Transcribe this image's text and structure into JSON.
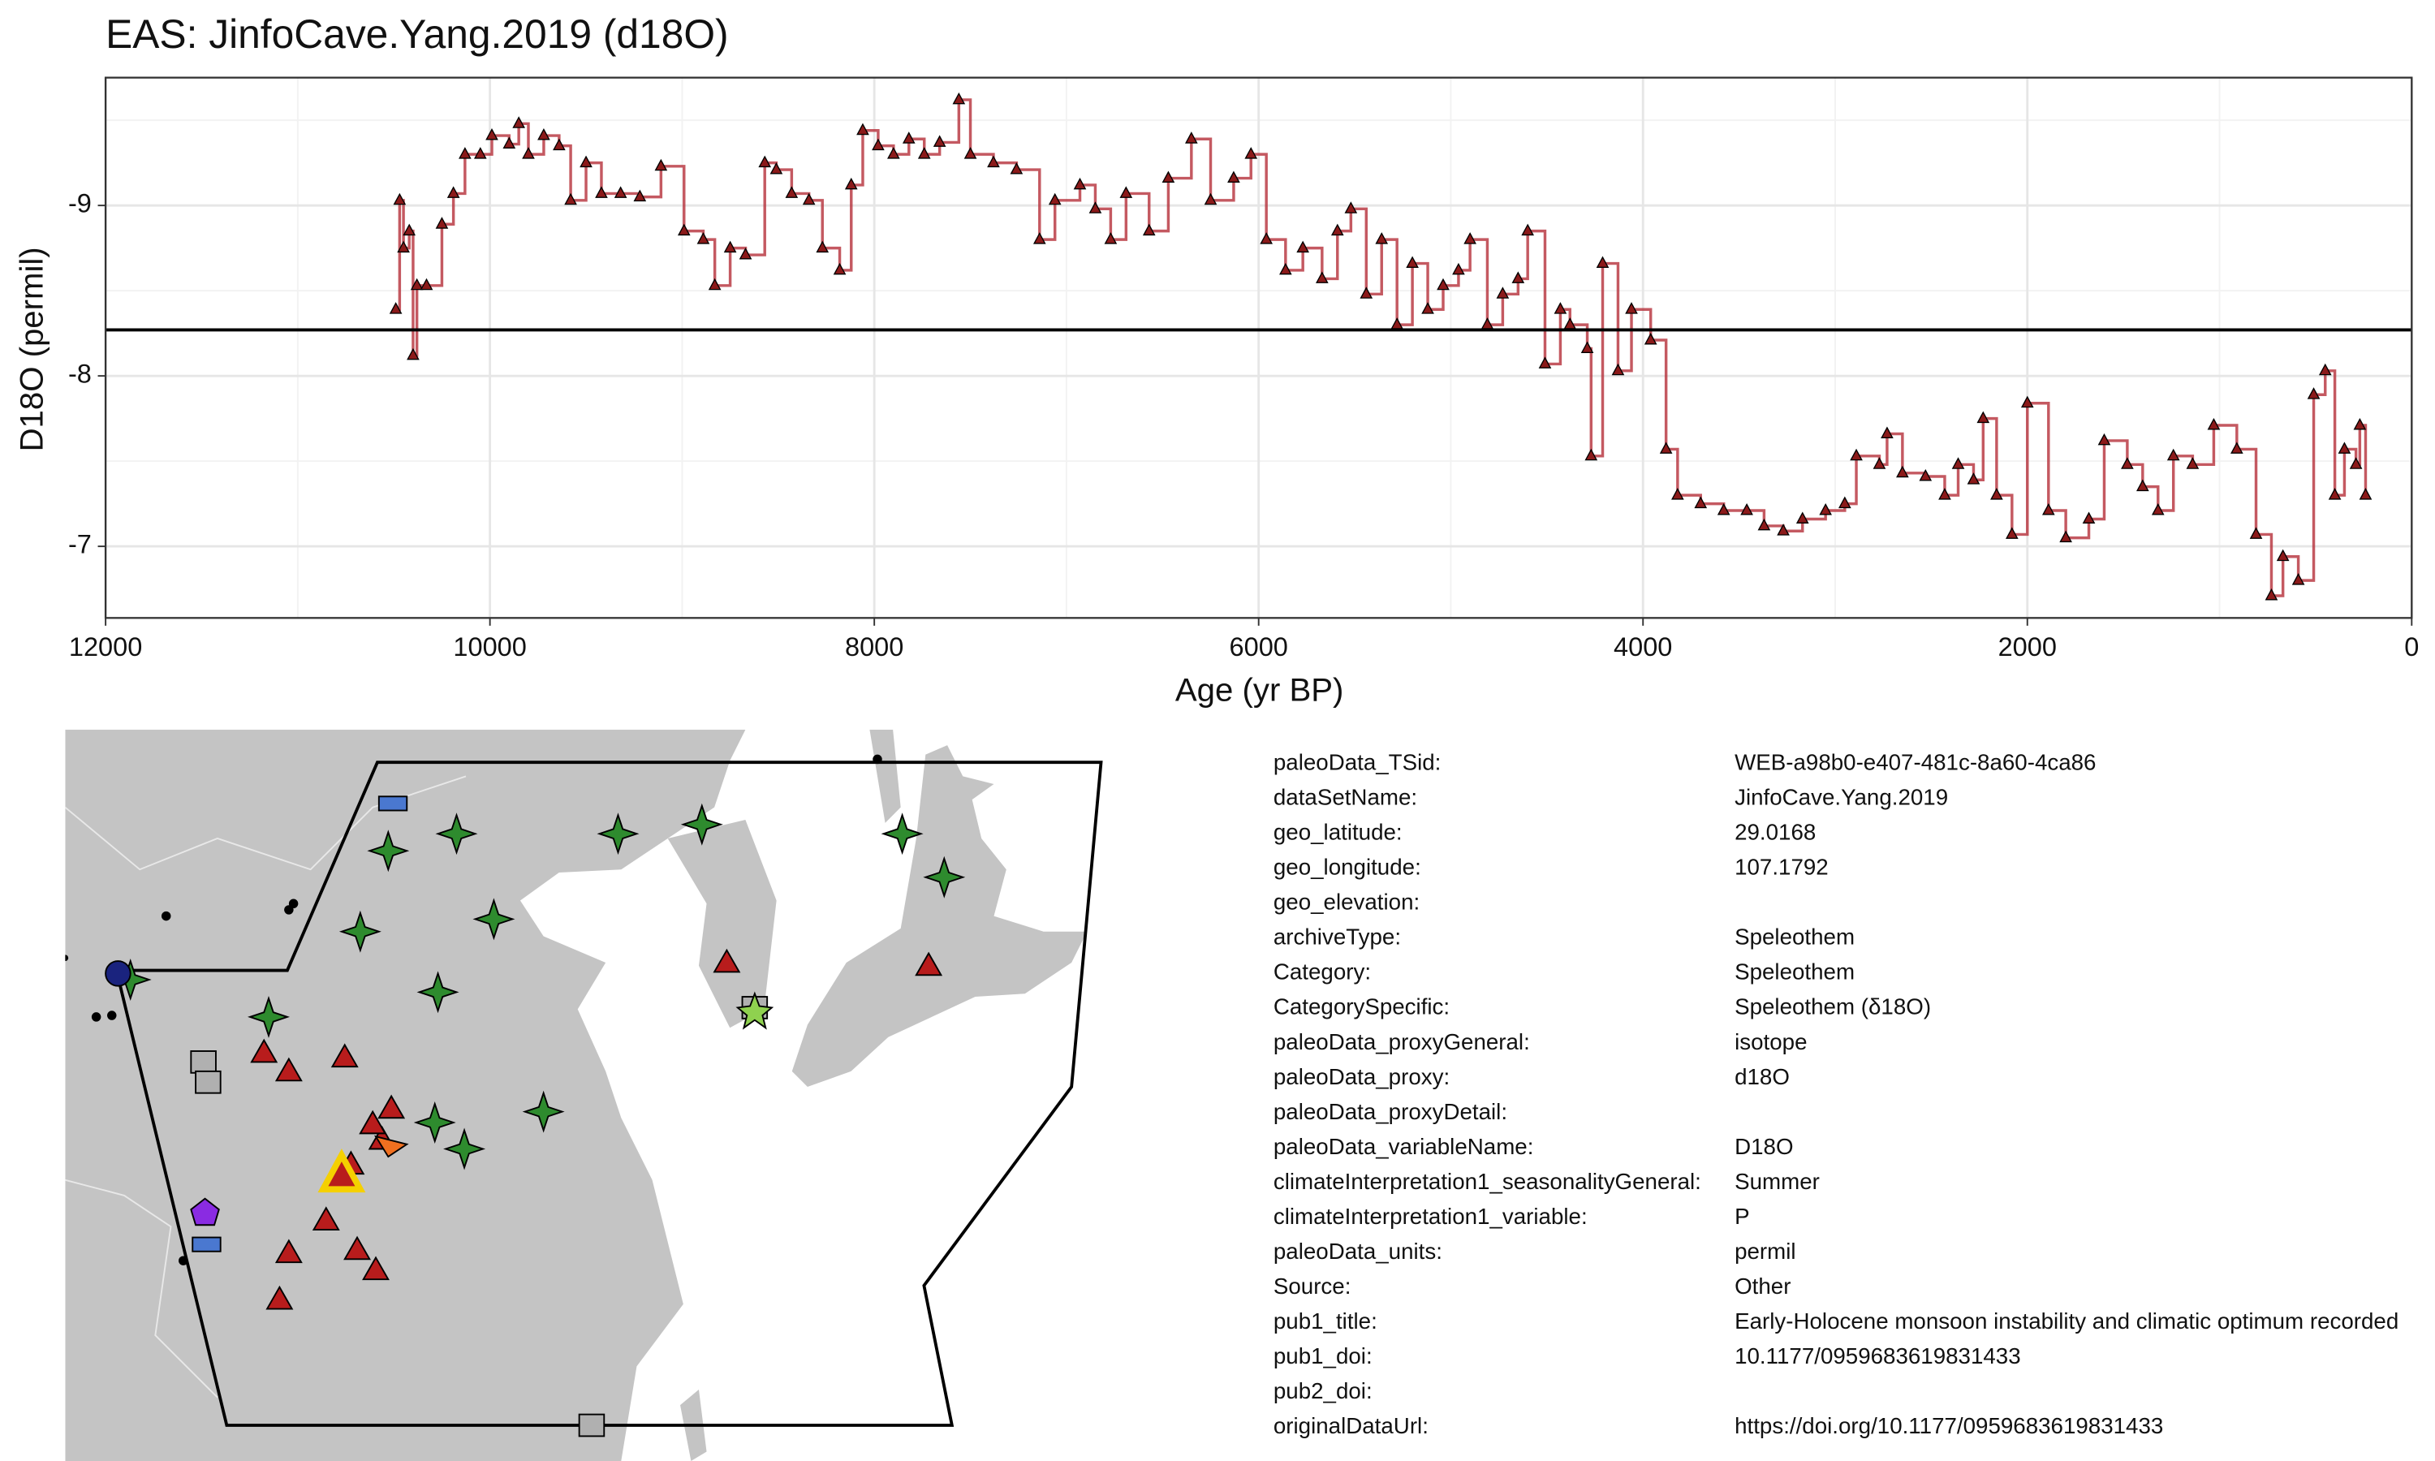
{
  "chart_data": {
    "type": "step-line",
    "title": "EAS: JinfoCave.Yang.2019 (d18O)",
    "x_label": "Age (yr BP)",
    "y_label": "D18O (permil)",
    "xlim": [
      12000,
      0
    ],
    "xticks": [
      12000,
      10000,
      8000,
      6000,
      4000,
      2000,
      0
    ],
    "x_minor_ticks": [
      11000,
      9000,
      7000,
      5000,
      3000,
      1000
    ],
    "ylim": [
      -9.75,
      -6.58
    ],
    "y_reversed": true,
    "yticks": [
      -9,
      -8,
      -7
    ],
    "y_minor_ticks": [
      -9.5,
      -8.5,
      -7.5
    ],
    "hline": -8.27,
    "grid": true,
    "x": [
      10490,
      10470,
      10450,
      10420,
      10400,
      10380,
      10330,
      10250,
      10190,
      10130,
      10050,
      9990,
      9900,
      9850,
      9800,
      9720,
      9640,
      9580,
      9500,
      9420,
      9320,
      9220,
      9110,
      8990,
      8890,
      8830,
      8750,
      8670,
      8570,
      8510,
      8430,
      8340,
      8270,
      8180,
      8120,
      8060,
      7980,
      7900,
      7820,
      7740,
      7660,
      7560,
      7500,
      7380,
      7260,
      7140,
      7060,
      6930,
      6850,
      6770,
      6690,
      6570,
      6470,
      6350,
      6250,
      6130,
      6040,
      5960,
      5860,
      5770,
      5670,
      5590,
      5520,
      5440,
      5360,
      5280,
      5200,
      5120,
      5040,
      4960,
      4900,
      4810,
      4730,
      4650,
      4600,
      4510,
      4430,
      4380,
      4290,
      4270,
      4210,
      4130,
      4060,
      3960,
      3880,
      3820,
      3700,
      3580,
      3460,
      3370,
      3270,
      3170,
      3050,
      2950,
      2890,
      2770,
      2730,
      2650,
      2530,
      2430,
      2360,
      2280,
      2230,
      2160,
      2080,
      2000,
      1890,
      1800,
      1680,
      1600,
      1480,
      1400,
      1320,
      1240,
      1140,
      1030,
      910,
      810,
      730,
      670,
      590,
      510,
      450,
      400,
      350,
      290,
      270,
      240
    ],
    "series": [
      {
        "color": "#b5303a",
        "marker_color": "#8b1a1a",
        "values": [
          -8.39,
          -9.03,
          -8.75,
          -8.85,
          -8.12,
          -8.53,
          -8.53,
          -8.89,
          -9.07,
          -9.3,
          -9.3,
          -9.41,
          -9.36,
          -9.48,
          -9.3,
          -9.41,
          -9.35,
          -9.03,
          -9.25,
          -9.07,
          -9.07,
          -9.05,
          -9.23,
          -8.85,
          -8.8,
          -8.53,
          -8.75,
          -8.71,
          -9.25,
          -9.21,
          -9.07,
          -9.03,
          -8.75,
          -8.62,
          -9.12,
          -9.44,
          -9.35,
          -9.3,
          -9.39,
          -9.3,
          -9.37,
          -9.62,
          -9.3,
          -9.25,
          -9.21,
          -8.8,
          -9.03,
          -9.12,
          -8.98,
          -8.8,
          -9.07,
          -8.85,
          -9.16,
          -9.39,
          -9.03,
          -9.16,
          -9.3,
          -8.8,
          -8.62,
          -8.75,
          -8.57,
          -8.85,
          -8.98,
          -8.48,
          -8.8,
          -8.3,
          -8.66,
          -8.39,
          -8.53,
          -8.62,
          -8.8,
          -8.3,
          -8.48,
          -8.57,
          -8.85,
          -8.07,
          -8.39,
          -8.3,
          -8.16,
          -7.53,
          -8.66,
          -8.03,
          -8.39,
          -8.21,
          -7.57,
          -7.3,
          -7.25,
          -7.21,
          -7.21,
          -7.12,
          -7.09,
          -7.16,
          -7.21,
          -7.25,
          -7.53,
          -7.48,
          -7.66,
          -7.43,
          -7.41,
          -7.3,
          -7.48,
          -7.39,
          -7.75,
          -7.3,
          -7.07,
          -7.84,
          -7.21,
          -7.05,
          -7.16,
          -7.62,
          -7.48,
          -7.35,
          -7.21,
          -7.53,
          -7.48,
          -7.71,
          -7.57,
          -7.07,
          -6.71,
          -6.94,
          -6.8,
          -7.89,
          -8.03,
          -7.3,
          -7.57,
          -7.48,
          -7.71,
          -7.3
        ]
      }
    ]
  },
  "metadata": [
    {
      "key": "paleoData_TSid:",
      "value": "WEB-a98b0-e407-481c-8a60-4ca86"
    },
    {
      "key": "dataSetName:",
      "value": "JinfoCave.Yang.2019"
    },
    {
      "key": "geo_latitude:",
      "value": "29.0168"
    },
    {
      "key": "geo_longitude:",
      "value": "107.1792"
    },
    {
      "key": "geo_elevation:"
    },
    {
      "key": "archiveType:",
      "value": "Speleothem"
    },
    {
      "key": "Category:",
      "value": "Speleothem"
    },
    {
      "key": "CategorySpecific:",
      "value": "Speleothem (δ18O)"
    },
    {
      "key": "paleoData_proxyGeneral:",
      "value": "isotope"
    },
    {
      "key": "paleoData_proxy:",
      "value": "d18O"
    },
    {
      "key": "paleoData_proxyDetail:"
    },
    {
      "key": "paleoData_variableName:",
      "value": "D18O"
    },
    {
      "key": "climateInterpretation1_seasonalityGeneral:",
      "value": "Summer"
    },
    {
      "key": "climateInterpretation1_variable:",
      "value": "P"
    },
    {
      "key": "paleoData_units:",
      "value": "permil"
    },
    {
      "key": "Source:",
      "value": "Other"
    },
    {
      "key": "pub1_title:",
      "value": "Early-Holocene monsoon instability and climatic optimum recorded"
    },
    {
      "key": "pub1_doi:",
      "value": "10.1177/0959683619831433"
    },
    {
      "key": "pub2_doi:"
    },
    {
      "key": "originalDataUrl:",
      "value": "https://doi.org/10.1177/0959683619831433"
    }
  ]
}
